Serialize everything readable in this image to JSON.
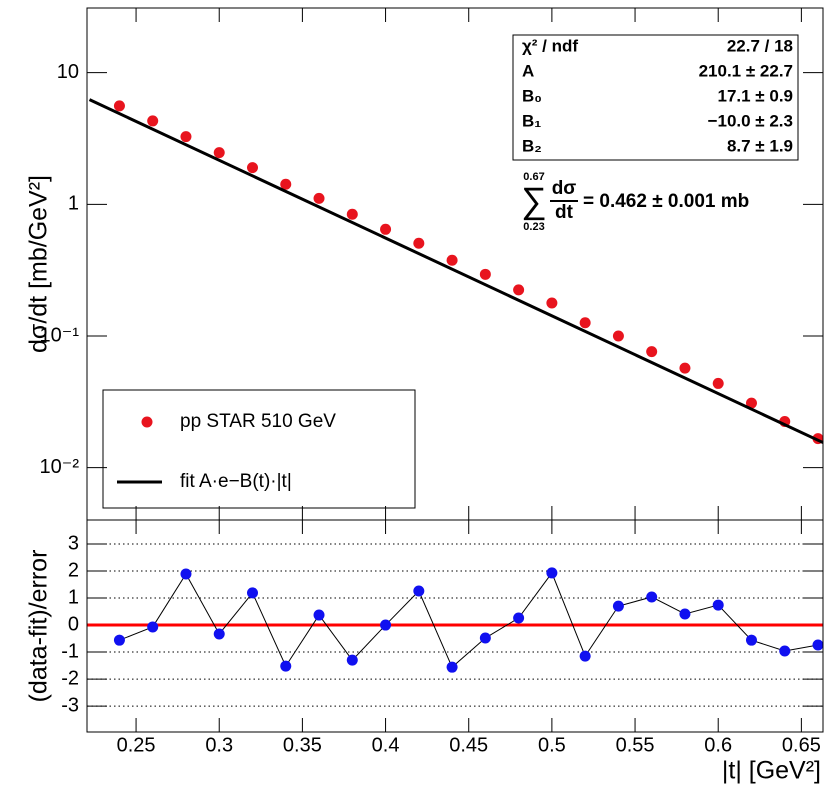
{
  "chart_data": [
    {
      "type": "scatter",
      "log_y": true,
      "ylabel": "dσ/dt [mb/GeV²]",
      "xlim": [
        0.2205,
        0.663
      ],
      "xticks": [
        0.25,
        0.3,
        0.35,
        0.4,
        0.45,
        0.5,
        0.55,
        0.6,
        0.65
      ],
      "ylim": [
        0.004,
        31
      ],
      "yticks": [
        {
          "value": 0.01,
          "label": "10⁻²"
        },
        {
          "value": 0.1,
          "label": "10⁻¹"
        },
        1,
        10
      ],
      "legend": "bottom-left",
      "series": [
        {
          "name": "pp STAR 510 GeV",
          "color": "#e8141e",
          "x": [
            0.24,
            0.26,
            0.28,
            0.3,
            0.32,
            0.34,
            0.36,
            0.38,
            0.4,
            0.42,
            0.44,
            0.46,
            0.48,
            0.5,
            0.52,
            0.54,
            0.56,
            0.58,
            0.6,
            0.62,
            0.64,
            0.66
          ],
          "values": [
            5.6,
            4.3,
            3.27,
            2.47,
            1.9,
            1.42,
            1.11,
            0.84,
            0.646,
            0.506,
            0.376,
            0.294,
            0.224,
            0.178,
            0.126,
            0.1,
            0.076,
            0.057,
            0.0436,
            0.0309,
            0.0224,
            0.0166
          ]
        },
        {
          "name": "fit A·e−B(t)·|t|",
          "type": "line",
          "color": "#000000",
          "x": [
            0.222,
            0.663
          ],
          "values": [
            6.24,
            0.0155
          ]
        }
      ]
    },
    {
      "type": "line",
      "ylabel": "(data-fit)/error",
      "xlabel": "|t| [GeV²]",
      "xlim": [
        0.2205,
        0.663
      ],
      "xticks": [
        0.25,
        0.3,
        0.35,
        0.4,
        0.45,
        0.5,
        0.55,
        0.6,
        0.65
      ],
      "ylim": [
        -3.96,
        3.89
      ],
      "yticks": [
        -3,
        -2,
        -1,
        0,
        1,
        2,
        3
      ],
      "grid": true,
      "reference_line": {
        "value": 0,
        "color": "#ff0000"
      },
      "series": [
        {
          "color": "#1010f0",
          "line_color": "#000000",
          "x": [
            0.24,
            0.26,
            0.28,
            0.3,
            0.32,
            0.34,
            0.36,
            0.38,
            0.4,
            0.42,
            0.44,
            0.46,
            0.48,
            0.5,
            0.52,
            0.54,
            0.56,
            0.58,
            0.6,
            0.62,
            0.64,
            0.66
          ],
          "values": [
            -0.56,
            -0.07,
            1.89,
            -0.33,
            1.19,
            -1.52,
            0.37,
            -1.3,
            0.0,
            1.26,
            -1.56,
            -0.48,
            0.26,
            1.93,
            -1.15,
            0.7,
            1.04,
            0.41,
            0.74,
            -0.56,
            -0.96,
            -0.74
          ]
        }
      ]
    }
  ],
  "stats": {
    "rows": [
      [
        "χ² / ndf",
        "22.7 / 18"
      ],
      [
        "A",
        "210.1 ± 22.7"
      ],
      [
        "B₀",
        "17.1 ± 0.9"
      ],
      [
        "B₁",
        "−10.0 ± 2.3"
      ],
      [
        "B₂",
        "8.7 ± 1.9"
      ]
    ]
  },
  "annotation": {
    "symbol": "∑",
    "upper": "0.67",
    "lower": "0.23",
    "numerator": "dσ",
    "denominator": "dt",
    "result": "= 0.462 ± 0.001 mb"
  }
}
